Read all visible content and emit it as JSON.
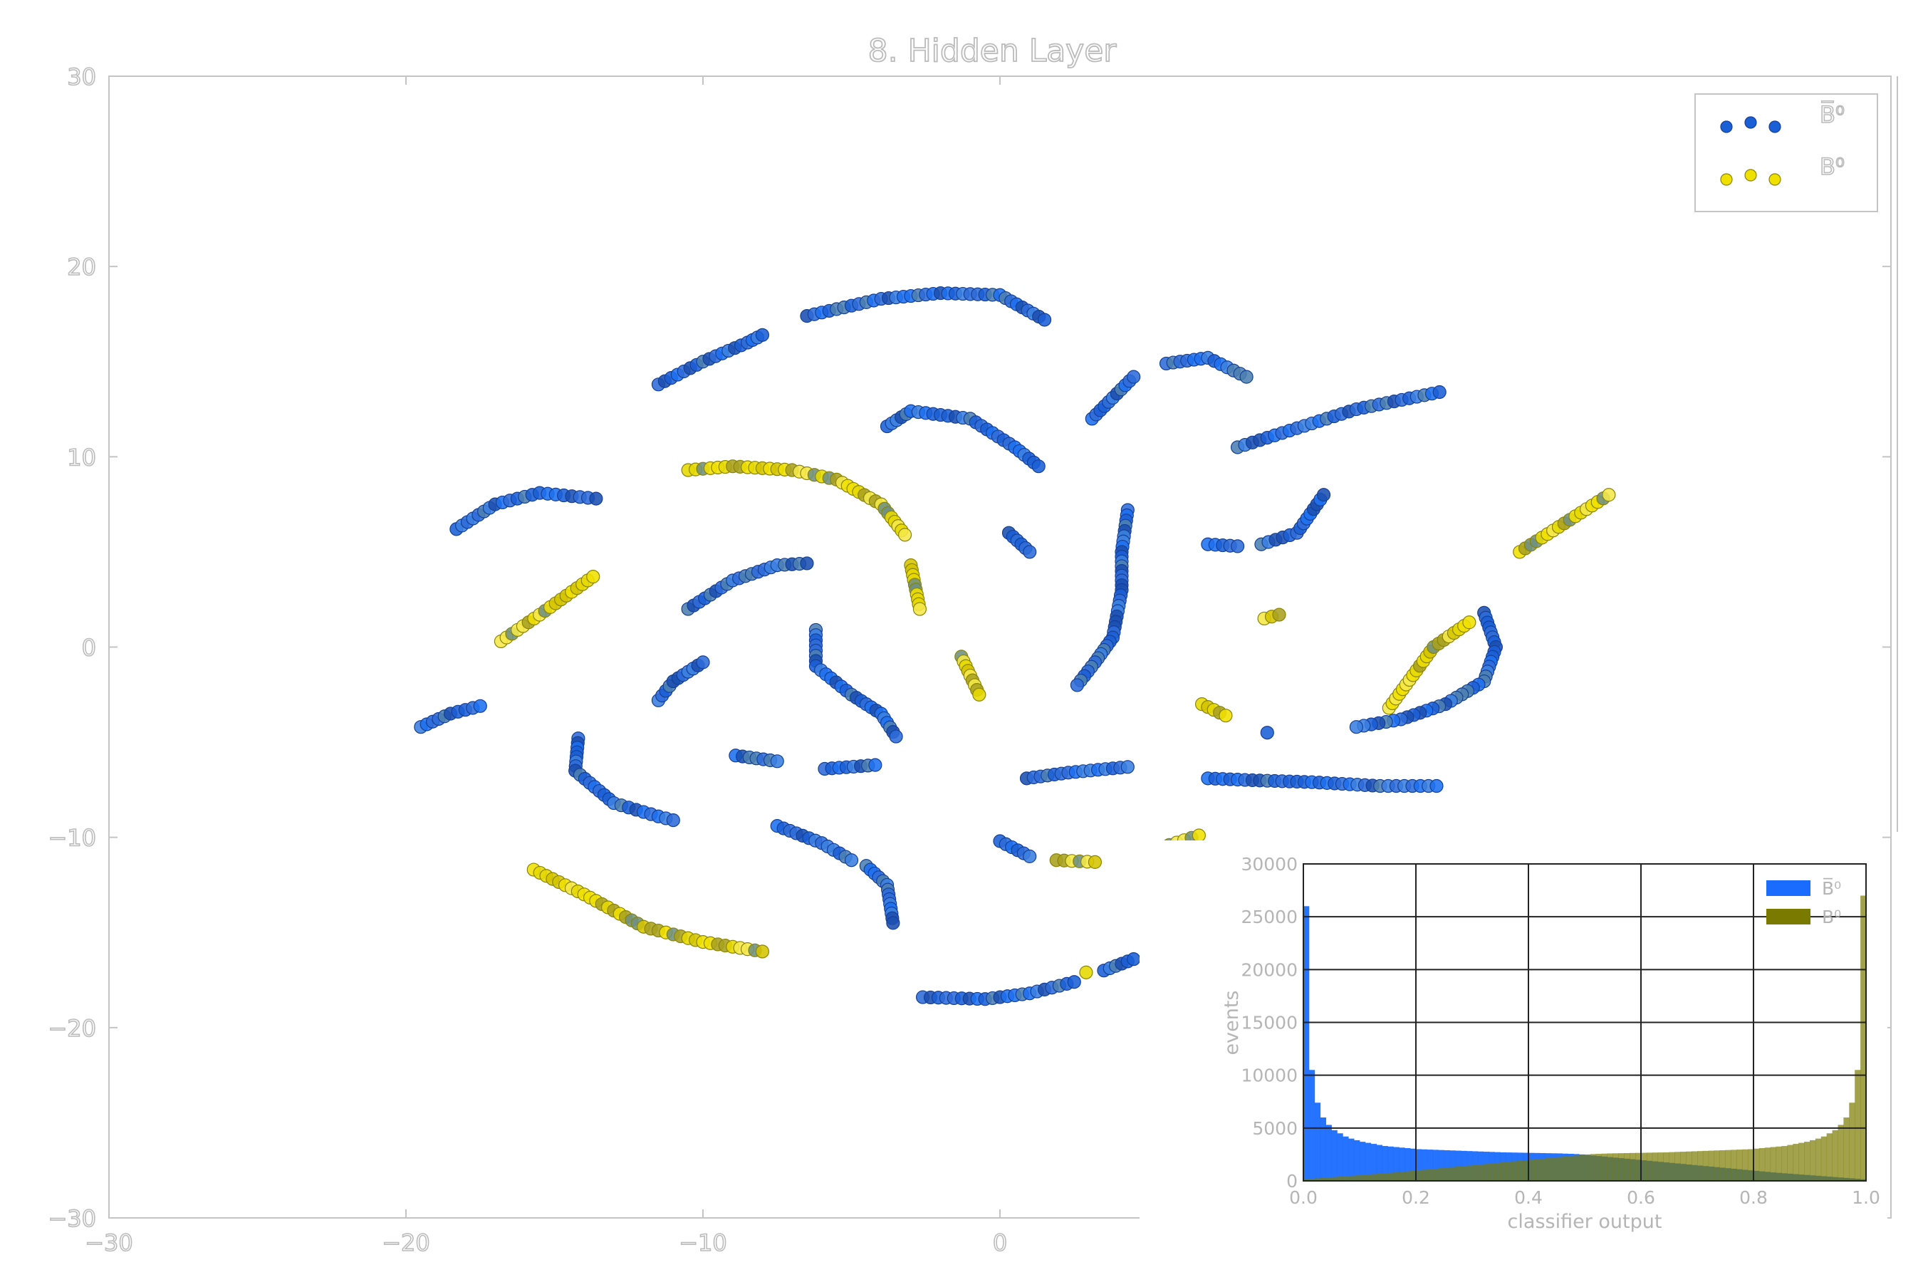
{
  "chart_data": [
    {
      "type": "scatter",
      "title": "8. Hidden Layer",
      "xlim": [
        -30,
        30
      ],
      "ylim": [
        -30,
        30
      ],
      "xticks": [
        -30,
        -20,
        -10,
        0
      ],
      "yticks": [
        30,
        20,
        10,
        0,
        -10,
        -20,
        -30
      ],
      "xtick_labels": [
        "−30",
        "−20",
        "−10",
        "0"
      ],
      "ytick_labels": [
        "30",
        "20",
        "10",
        "0",
        "−10",
        "−20",
        "−30"
      ],
      "legend": {
        "position": "top-right",
        "entries": [
          "B̅⁰",
          "B⁰"
        ]
      },
      "series": [
        {
          "name": "B̅⁰",
          "color": "#1a5fd6",
          "arcs": [
            [
              [
                -11.5,
                13.8
              ],
              [
                -10,
                15
              ],
              [
                -8.5,
                16
              ],
              [
                -8,
                16.4
              ]
            ],
            [
              [
                -6.5,
                17.4
              ],
              [
                -4,
                18.3
              ],
              [
                -2,
                18.6
              ],
              [
                0,
                18.5
              ],
              [
                1.5,
                17.2
              ]
            ],
            [
              [
                3.1,
                12
              ],
              [
                4.5,
                14.2
              ]
            ],
            [
              [
                5.6,
                14.9
              ],
              [
                7,
                15.2
              ],
              [
                8.3,
                14.2
              ]
            ],
            [
              [
                8,
                10.5
              ],
              [
                10,
                11.5
              ],
              [
                12,
                12.5
              ],
              [
                14.8,
                13.4
              ]
            ],
            [
              [
                -3.8,
                11.6
              ],
              [
                -3,
                12.4
              ],
              [
                -1,
                12
              ],
              [
                0.5,
                10.5
              ],
              [
                1.3,
                9.5
              ]
            ],
            [
              [
                0.3,
                6
              ],
              [
                1,
                5
              ]
            ],
            [
              [
                -18.3,
                6.2
              ],
              [
                -17,
                7.5
              ],
              [
                -15.5,
                8.1
              ],
              [
                -13.6,
                7.8
              ]
            ],
            [
              [
                -10.5,
                2
              ],
              [
                -9,
                3.5
              ],
              [
                -7.5,
                4.3
              ],
              [
                -6.5,
                4.4
              ]
            ],
            [
              [
                -11.5,
                -2.8
              ],
              [
                -11,
                -1.8
              ],
              [
                -10,
                -0.8
              ]
            ],
            [
              [
                -6.2,
                0.9
              ],
              [
                -6.2,
                -1
              ],
              [
                -5,
                -2.5
              ],
              [
                -4,
                -3.5
              ],
              [
                -3.5,
                -4.7
              ]
            ],
            [
              [
                -19.5,
                -4.2
              ],
              [
                -18.5,
                -3.5
              ],
              [
                -17.5,
                -3.1
              ]
            ],
            [
              [
                -14.2,
                -4.8
              ],
              [
                -14.3,
                -6.5
              ],
              [
                -13,
                -8.2
              ],
              [
                -11.5,
                -8.9
              ],
              [
                -11,
                -9.1
              ]
            ],
            [
              [
                -8.9,
                -5.7
              ],
              [
                -7.5,
                -6
              ]
            ],
            [
              [
                -5.9,
                -6.4
              ],
              [
                -4.2,
                -6.2
              ]
            ],
            [
              [
                4.3,
                7.2
              ],
              [
                4.1,
                5
              ],
              [
                4.1,
                3
              ],
              [
                3.8,
                0.5
              ],
              [
                3.2,
                -0.8
              ],
              [
                2.6,
                -2
              ]
            ],
            [
              [
                7,
                5.4
              ],
              [
                8,
                5.3
              ]
            ],
            [
              [
                8.8,
                5.4
              ],
              [
                10,
                6
              ],
              [
                10.9,
                8
              ]
            ],
            [
              [
                16.3,
                1.8
              ],
              [
                16.7,
                0
              ],
              [
                16.3,
                -1.8
              ],
              [
                15,
                -3
              ],
              [
                13.5,
                -3.8
              ],
              [
                12,
                -4.2
              ]
            ],
            [
              [
                9,
                -4.5
              ]
            ],
            [
              [
                7,
                -6.9
              ],
              [
                8.5,
                -7
              ],
              [
                10.5,
                -7.1
              ],
              [
                12.8,
                -7.3
              ],
              [
                14.7,
                -7.3
              ]
            ],
            [
              [
                0.9,
                -6.9
              ],
              [
                2.3,
                -6.6
              ],
              [
                4.3,
                -6.3
              ]
            ],
            [
              [
                0,
                -10.2
              ],
              [
                1,
                -11
              ]
            ],
            [
              [
                -7.5,
                -9.4
              ],
              [
                -6,
                -10.3
              ],
              [
                -5,
                -11.2
              ]
            ],
            [
              [
                -4.5,
                -11.5
              ],
              [
                -3.8,
                -12.5
              ],
              [
                -3.6,
                -14.5
              ]
            ],
            [
              [
                -2.6,
                -18.4
              ],
              [
                -0.5,
                -18.5
              ],
              [
                1,
                -18.2
              ],
              [
                2.5,
                -17.6
              ]
            ],
            [
              [
                3.5,
                -17
              ],
              [
                4.5,
                -16.4
              ]
            ]
          ]
        },
        {
          "name": "B⁰",
          "color": "#f0e000",
          "arcs": [
            [
              [
                -10.5,
                9.3
              ],
              [
                -9,
                9.5
              ],
              [
                -7,
                9.3
              ],
              [
                -5.5,
                8.8
              ],
              [
                -4,
                7.5
              ],
              [
                -3.2,
                5.9
              ]
            ],
            [
              [
                -3,
                4.3
              ],
              [
                -2.7,
                2
              ]
            ],
            [
              [
                -1.3,
                -0.5
              ],
              [
                -0.7,
                -2.5
              ]
            ],
            [
              [
                -16.8,
                0.3
              ],
              [
                -15.5,
                1.7
              ],
              [
                -13.7,
                3.7
              ]
            ],
            [
              [
                -15.7,
                -11.7
              ],
              [
                -14,
                -13
              ],
              [
                -12,
                -14.7
              ],
              [
                -10,
                -15.5
              ],
              [
                -8,
                -16
              ]
            ],
            [
              [
                1.9,
                -11.2
              ],
              [
                3.2,
                -11.3
              ]
            ],
            [
              [
                5.7,
                -10.4
              ],
              [
                6.7,
                -9.9
              ]
            ],
            [
              [
                17.5,
                5
              ],
              [
                19,
                6.5
              ],
              [
                20.5,
                8
              ]
            ],
            [
              [
                8.9,
                1.5
              ],
              [
                9.4,
                1.7
              ]
            ],
            [
              [
                13.1,
                -3.2
              ],
              [
                14.6,
                0
              ],
              [
                15.8,
                1.3
              ]
            ],
            [
              [
                6.8,
                -3
              ],
              [
                7.6,
                -3.6
              ]
            ],
            [
              [
                2.9,
                -17.1
              ]
            ]
          ]
        }
      ]
    },
    {
      "type": "bar",
      "xlabel": "classifier output",
      "ylabel": "events",
      "xlim": [
        0,
        1
      ],
      "ylim": [
        0,
        30000
      ],
      "xticks": [
        0.0,
        0.2,
        0.4,
        0.6,
        0.8,
        1.0
      ],
      "xtick_labels": [
        "0.0",
        "0.2",
        "0.4",
        "0.6",
        "0.8",
        "1.0"
      ],
      "yticks": [
        0,
        5000,
        10000,
        15000,
        20000,
        25000,
        30000
      ],
      "ytick_labels": [
        "0",
        "5000",
        "10000",
        "15000",
        "20000",
        "25000",
        "30000"
      ],
      "grid": true,
      "legend": {
        "position": "top-right",
        "entries": [
          "B̅⁰",
          "B⁰"
        ]
      },
      "bins": 100,
      "series": [
        {
          "name": "B̅⁰",
          "color": "#1a6cff",
          "values": [
            26000,
            10500,
            7400,
            6000,
            5300,
            4800,
            4500,
            4200,
            4000,
            3850,
            3700,
            3600,
            3500,
            3400,
            3300,
            3250,
            3200,
            3150,
            3100,
            3050,
            3000,
            2980,
            2960,
            2940,
            2920,
            2900,
            2880,
            2860,
            2840,
            2820,
            2800,
            2780,
            2760,
            2740,
            2720,
            2700,
            2690,
            2680,
            2670,
            2660,
            2650,
            2640,
            2630,
            2620,
            2610,
            2600,
            2580,
            2560,
            2540,
            2500,
            2450,
            2400,
            2350,
            2300,
            2250,
            2200,
            2150,
            2100,
            2050,
            2000,
            1950,
            1900,
            1850,
            1800,
            1750,
            1700,
            1650,
            1600,
            1550,
            1500,
            1450,
            1400,
            1350,
            1300,
            1250,
            1200,
            1150,
            1100,
            1050,
            1000,
            950,
            900,
            850,
            800,
            760,
            720,
            680,
            640,
            600,
            560,
            520,
            480,
            440,
            400,
            360,
            320,
            280,
            240,
            200,
            160
          ]
        },
        {
          "name": "B⁰",
          "color": "#7a7a00",
          "values": [
            160,
            200,
            240,
            280,
            320,
            360,
            400,
            440,
            480,
            520,
            560,
            600,
            640,
            680,
            720,
            760,
            800,
            850,
            900,
            950,
            1000,
            1050,
            1100,
            1150,
            1200,
            1250,
            1300,
            1350,
            1400,
            1450,
            1500,
            1550,
            1600,
            1650,
            1700,
            1750,
            1800,
            1850,
            1900,
            1950,
            2000,
            2050,
            2100,
            2150,
            2200,
            2250,
            2300,
            2350,
            2400,
            2450,
            2500,
            2540,
            2560,
            2580,
            2600,
            2610,
            2620,
            2630,
            2640,
            2650,
            2660,
            2670,
            2680,
            2690,
            2700,
            2720,
            2740,
            2760,
            2780,
            2800,
            2820,
            2840,
            2860,
            2880,
            2900,
            2920,
            2940,
            2960,
            2980,
            3000,
            3050,
            3100,
            3150,
            3200,
            3250,
            3300,
            3400,
            3500,
            3600,
            3700,
            3850,
            4000,
            4200,
            4500,
            4800,
            5300,
            6000,
            7400,
            10500,
            27000
          ]
        }
      ]
    }
  ]
}
